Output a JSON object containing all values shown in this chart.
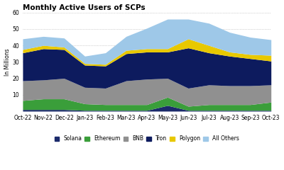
{
  "title": "Monthly Active Users of SCPs",
  "ylabel": "In Millions",
  "months": [
    "Oct-22",
    "Nov-22",
    "Dec-22",
    "Jan-23",
    "Feb-23",
    "Mar-23",
    "Apr-23",
    "May-23",
    "Jun-23",
    "Jul-23",
    "Aug-23",
    "Sep-23",
    "Oct-23"
  ],
  "series": {
    "Solana": [
      1.0,
      1.0,
      1.0,
      0.5,
      0.5,
      0.5,
      0.5,
      3.5,
      0.5,
      0.5,
      0.5,
      0.5,
      0.5
    ],
    "Ethereum": [
      5.5,
      6.5,
      6.5,
      4.0,
      3.5,
      3.5,
      3.5,
      5.0,
      2.5,
      3.5,
      3.5,
      3.5,
      5.0
    ],
    "BNB": [
      12.0,
      11.5,
      12.5,
      10.0,
      10.0,
      14.5,
      15.5,
      11.5,
      11.0,
      12.0,
      11.5,
      11.5,
      10.5
    ],
    "Tron": [
      17.0,
      19.0,
      17.5,
      13.5,
      13.5,
      16.5,
      16.5,
      16.0,
      24.5,
      19.5,
      18.0,
      16.5,
      14.5
    ],
    "Polygon": [
      2.0,
      2.0,
      1.5,
      1.0,
      1.0,
      2.0,
      2.0,
      2.0,
      5.5,
      4.5,
      2.5,
      2.5,
      3.5
    ],
    "All Others": [
      6.5,
      5.5,
      5.5,
      4.5,
      7.0,
      8.5,
      12.5,
      18.0,
      12.0,
      13.5,
      12.0,
      10.5,
      9.5
    ]
  },
  "colors": {
    "Solana": "#1b2a6b",
    "Ethereum": "#3a9e3a",
    "BNB": "#909090",
    "Tron": "#0d1b5e",
    "Polygon": "#e8c800",
    "All Others": "#9ec8e8"
  },
  "ylim": [
    0,
    60
  ],
  "yticks": [
    10,
    20,
    30,
    40,
    50,
    60
  ],
  "background_color": "#ffffff",
  "title_fontsize": 7.5,
  "axis_fontsize": 5.5,
  "legend_fontsize": 5.5
}
